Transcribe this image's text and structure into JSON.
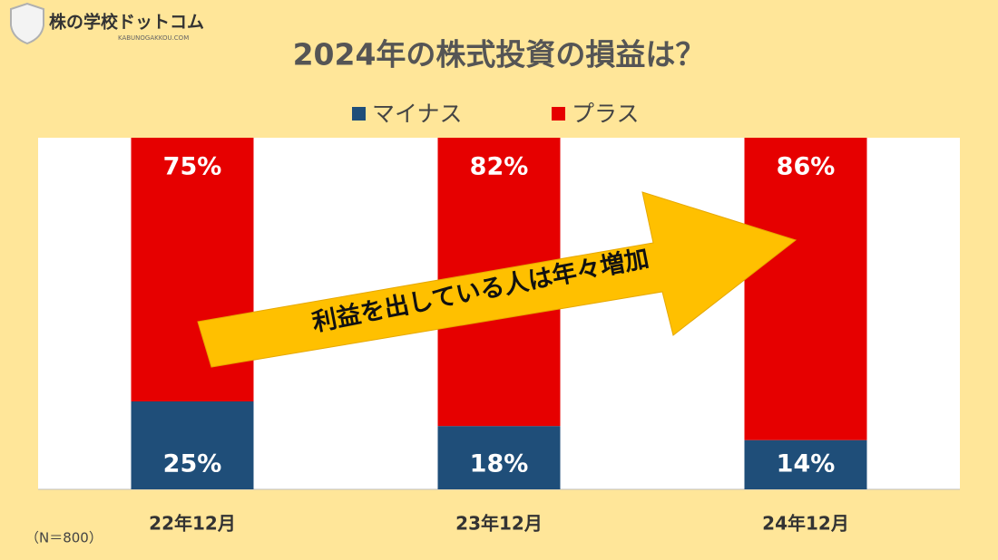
{
  "chart_data": {
    "type": "stacked_bar",
    "title": "2024年の株式投資の損益は？",
    "brand": "株の学校ドットコム",
    "brand_sub": "KABUNOGAKKOU.COM",
    "annotation": "利益を出している人は年々増加",
    "note": "（N＝800）",
    "categories": [
      "22年12月",
      "23年12月",
      "24年12月"
    ],
    "series": [
      {
        "name": "マイナス",
        "color": "#1f4e79",
        "values": [
          25,
          18,
          14
        ],
        "value_labels": [
          "25%",
          "18%",
          "14%"
        ]
      },
      {
        "name": "プラス",
        "color": "#e60000",
        "values": [
          75,
          82,
          86
        ],
        "value_labels": [
          "75%",
          "82%",
          "86%"
        ]
      }
    ],
    "ylim": [
      0,
      100
    ],
    "legend": "top"
  }
}
